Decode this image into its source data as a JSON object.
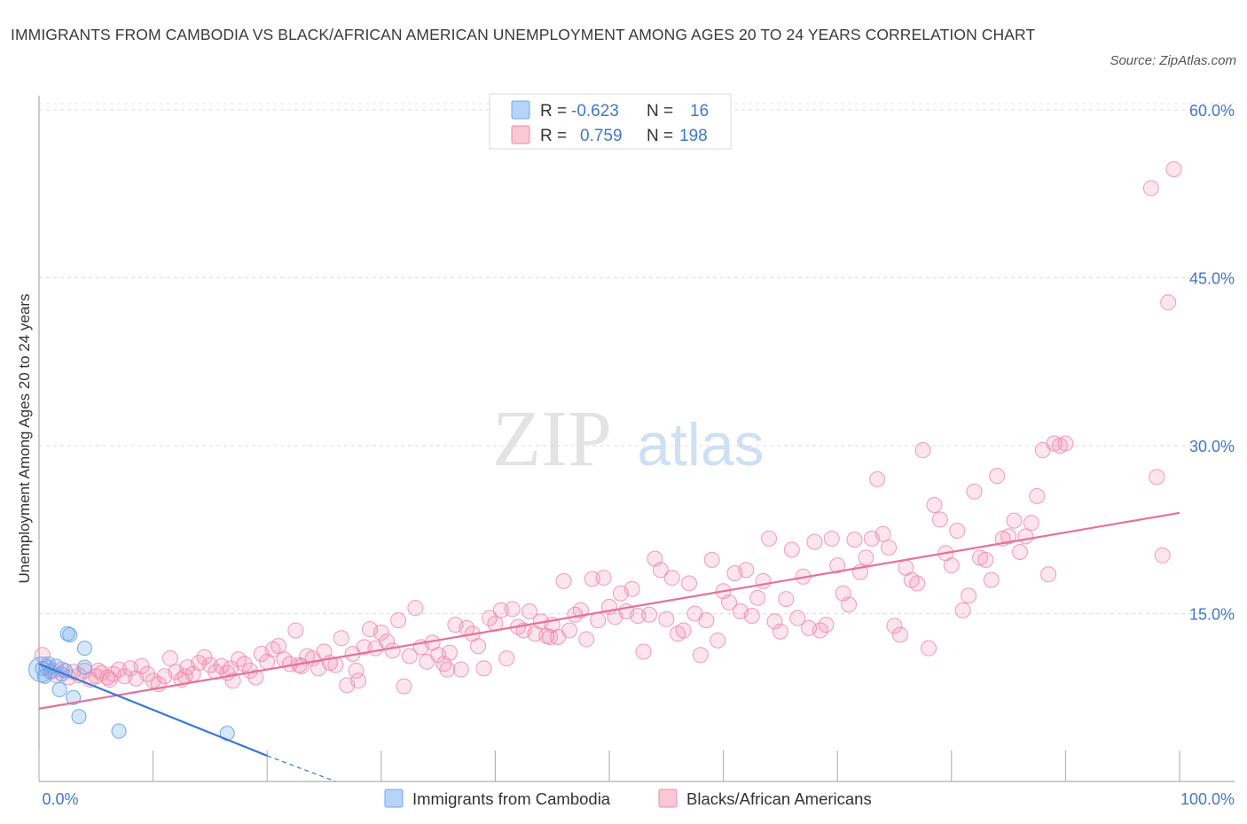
{
  "title": "IMMIGRANTS FROM CAMBODIA VS BLACK/AFRICAN AMERICAN UNEMPLOYMENT AMONG AGES 20 TO 24 YEARS CORRELATION CHART",
  "source": "Source: ZipAtlas.com",
  "watermark": {
    "zip": "ZIP",
    "atlas": "atlas"
  },
  "legend_top": {
    "row1": {
      "r_label": "R =",
      "r_value": "-0.623",
      "n_label": "N =",
      "n_value": "16"
    },
    "row2": {
      "r_label": "R =",
      "r_value": "0.759",
      "n_label": "N =",
      "n_value": "198"
    }
  },
  "chart_data": {
    "type": "scatter",
    "title": "IMMIGRANTS FROM CAMBODIA VS BLACK/AFRICAN AMERICAN UNEMPLOYMENT AMONG AGES 20 TO 24 YEARS CORRELATION CHART",
    "xlabel": "",
    "ylabel": "Unemployment Among Ages 20 to 24 years",
    "xlim": [
      0,
      100
    ],
    "ylim": [
      0,
      60
    ],
    "x_tick_labels": [
      "0.0%",
      "100.0%"
    ],
    "y_ticks": [
      15,
      30,
      45,
      60
    ],
    "y_tick_labels": [
      "15.0%",
      "30.0%",
      "45.0%",
      "60.0%"
    ],
    "colors": {
      "cambodia": "#6fa8ef",
      "black": "#f08aaa",
      "cambodia_line": "#3a78d4",
      "black_line": "#e5719a",
      "axis_label": "#3f78c9"
    },
    "series": [
      {
        "name": "Immigrants from Cambodia",
        "r": -0.623,
        "n": 16,
        "trend": {
          "x": [
            0,
            20
          ],
          "y": [
            10.5,
            2.3
          ],
          "dashed_extension_to": [
            26,
            0
          ]
        },
        "points": [
          [
            0.3,
            10.1
          ],
          [
            0.8,
            10.5
          ],
          [
            1.0,
            9.8
          ],
          [
            1.5,
            10.3
          ],
          [
            2.0,
            9.6
          ],
          [
            1.8,
            8.2
          ],
          [
            2.3,
            9.9
          ],
          [
            2.5,
            13.2
          ],
          [
            2.7,
            13.1
          ],
          [
            3.0,
            7.5
          ],
          [
            3.5,
            5.8
          ],
          [
            4.0,
            11.9
          ],
          [
            4.0,
            10.2
          ],
          [
            7.0,
            4.5
          ],
          [
            16.5,
            4.3
          ],
          [
            0.5,
            9.4
          ]
        ]
      },
      {
        "name": "Blacks/African Americans",
        "r": 0.759,
        "n": 198,
        "trend": {
          "x": [
            0,
            100
          ],
          "y": [
            6.5,
            24.0
          ]
        },
        "points": [
          [
            0.3,
            11.3
          ],
          [
            0.7,
            10.2
          ],
          [
            1.2,
            9.9
          ],
          [
            1.5,
            9.5
          ],
          [
            2.0,
            10.0
          ],
          [
            2.6,
            9.3
          ],
          [
            3.0,
            9.8
          ],
          [
            3.5,
            9.5
          ],
          [
            4.0,
            9.9
          ],
          [
            4.5,
            9.1
          ],
          [
            5.0,
            9.4
          ],
          [
            5.5,
            9.7
          ],
          [
            6.0,
            9.3
          ],
          [
            6.5,
            9.6
          ],
          [
            7.0,
            10.0
          ],
          [
            7.5,
            9.4
          ],
          [
            8.0,
            10.1
          ],
          [
            8.5,
            9.2
          ],
          [
            9.0,
            10.3
          ],
          [
            9.5,
            9.6
          ],
          [
            10.0,
            9.0
          ],
          [
            10.5,
            8.7
          ],
          [
            11.0,
            9.4
          ],
          [
            11.5,
            11.0
          ],
          [
            12.0,
            9.8
          ],
          [
            12.5,
            9.1
          ],
          [
            13.0,
            10.2
          ],
          [
            13.5,
            9.6
          ],
          [
            14.0,
            10.6
          ],
          [
            14.5,
            11.1
          ],
          [
            15.0,
            10.4
          ],
          [
            15.5,
            9.8
          ],
          [
            16.0,
            10.3
          ],
          [
            16.5,
            9.7
          ],
          [
            17.0,
            9.0
          ],
          [
            17.5,
            10.9
          ],
          [
            18.0,
            10.5
          ],
          [
            18.5,
            9.9
          ],
          [
            19.0,
            9.3
          ],
          [
            19.5,
            11.4
          ],
          [
            20.0,
            10.7
          ],
          [
            20.5,
            11.8
          ],
          [
            21.0,
            12.1
          ],
          [
            21.5,
            10.9
          ],
          [
            22.0,
            10.5
          ],
          [
            22.5,
            13.5
          ],
          [
            23.0,
            10.3
          ],
          [
            23.5,
            11.2
          ],
          [
            24.0,
            11.0
          ],
          [
            24.5,
            10.1
          ],
          [
            25.0,
            11.6
          ],
          [
            25.5,
            10.6
          ],
          [
            26.0,
            10.4
          ],
          [
            26.5,
            12.8
          ],
          [
            27.0,
            8.6
          ],
          [
            27.5,
            11.4
          ],
          [
            28.0,
            9.0
          ],
          [
            28.5,
            12.0
          ],
          [
            29.0,
            13.6
          ],
          [
            29.5,
            11.9
          ],
          [
            30.0,
            13.3
          ],
          [
            30.5,
            12.5
          ],
          [
            31.0,
            11.7
          ],
          [
            31.5,
            14.4
          ],
          [
            32.0,
            8.5
          ],
          [
            32.5,
            11.2
          ],
          [
            33.0,
            15.5
          ],
          [
            33.5,
            12.0
          ],
          [
            34.0,
            10.7
          ],
          [
            34.5,
            12.4
          ],
          [
            35.0,
            11.3
          ],
          [
            35.5,
            10.5
          ],
          [
            36.0,
            11.5
          ],
          [
            36.5,
            14.0
          ],
          [
            37.0,
            10.0
          ],
          [
            37.5,
            13.7
          ],
          [
            38.0,
            13.2
          ],
          [
            38.5,
            12.1
          ],
          [
            39.0,
            10.1
          ],
          [
            39.5,
            14.6
          ],
          [
            40.0,
            14.1
          ],
          [
            40.5,
            15.3
          ],
          [
            41.0,
            11.0
          ],
          [
            41.5,
            15.4
          ],
          [
            42.0,
            13.8
          ],
          [
            42.5,
            13.5
          ],
          [
            43.0,
            15.2
          ],
          [
            43.5,
            13.2
          ],
          [
            44.0,
            14.3
          ],
          [
            44.5,
            13.0
          ],
          [
            45.0,
            14.0
          ],
          [
            45.5,
            12.9
          ],
          [
            46.0,
            17.9
          ],
          [
            46.5,
            13.5
          ],
          [
            47.0,
            14.9
          ],
          [
            47.5,
            15.3
          ],
          [
            48.0,
            12.7
          ],
          [
            48.5,
            18.1
          ],
          [
            49.0,
            14.4
          ],
          [
            49.5,
            18.2
          ],
          [
            50.0,
            15.6
          ],
          [
            50.5,
            14.7
          ],
          [
            51.0,
            16.8
          ],
          [
            51.5,
            15.2
          ],
          [
            52.0,
            17.2
          ],
          [
            52.5,
            14.8
          ],
          [
            53.0,
            11.6
          ],
          [
            53.5,
            14.9
          ],
          [
            54.0,
            19.9
          ],
          [
            54.5,
            18.9
          ],
          [
            55.0,
            14.5
          ],
          [
            55.5,
            18.2
          ],
          [
            56.0,
            13.2
          ],
          [
            56.5,
            13.5
          ],
          [
            57.0,
            17.7
          ],
          [
            57.5,
            15.0
          ],
          [
            58.0,
            11.3
          ],
          [
            58.5,
            14.4
          ],
          [
            59.0,
            19.8
          ],
          [
            59.5,
            12.6
          ],
          [
            60.0,
            17.0
          ],
          [
            60.5,
            16.0
          ],
          [
            61.0,
            18.6
          ],
          [
            61.5,
            15.2
          ],
          [
            62.0,
            18.9
          ],
          [
            62.5,
            14.8
          ],
          [
            63.0,
            16.4
          ],
          [
            63.5,
            17.9
          ],
          [
            64.0,
            21.7
          ],
          [
            64.5,
            14.3
          ],
          [
            65.0,
            13.4
          ],
          [
            65.5,
            16.3
          ],
          [
            66.0,
            20.7
          ],
          [
            66.5,
            14.6
          ],
          [
            67.0,
            18.3
          ],
          [
            67.5,
            13.7
          ],
          [
            68.0,
            21.4
          ],
          [
            68.5,
            13.5
          ],
          [
            69.0,
            14.0
          ],
          [
            69.5,
            21.7
          ],
          [
            70.0,
            19.3
          ],
          [
            70.5,
            16.8
          ],
          [
            71.0,
            15.8
          ],
          [
            71.5,
            21.6
          ],
          [
            72.0,
            18.7
          ],
          [
            72.5,
            20.0
          ],
          [
            73.0,
            21.7
          ],
          [
            73.5,
            27.0
          ],
          [
            74.0,
            22.1
          ],
          [
            74.5,
            20.9
          ],
          [
            75.0,
            13.9
          ],
          [
            75.5,
            13.1
          ],
          [
            76.0,
            19.1
          ],
          [
            76.5,
            18.0
          ],
          [
            77.0,
            17.7
          ],
          [
            77.5,
            29.6
          ],
          [
            78.0,
            11.9
          ],
          [
            78.5,
            24.7
          ],
          [
            79.0,
            23.4
          ],
          [
            79.5,
            20.4
          ],
          [
            80.0,
            19.3
          ],
          [
            80.5,
            22.4
          ],
          [
            81.0,
            15.3
          ],
          [
            81.5,
            16.6
          ],
          [
            82.0,
            25.9
          ],
          [
            82.5,
            20.0
          ],
          [
            83.0,
            19.8
          ],
          [
            83.5,
            18.0
          ],
          [
            84.0,
            27.3
          ],
          [
            84.5,
            21.7
          ],
          [
            85.0,
            21.9
          ],
          [
            85.5,
            23.3
          ],
          [
            86.0,
            20.5
          ],
          [
            86.5,
            21.9
          ],
          [
            87.0,
            23.1
          ],
          [
            87.5,
            25.5
          ],
          [
            88.0,
            29.6
          ],
          [
            88.5,
            18.5
          ],
          [
            89.0,
            30.2
          ],
          [
            89.5,
            30.0
          ],
          [
            90.0,
            30.2
          ],
          [
            97.5,
            53.0
          ],
          [
            98.0,
            27.2
          ],
          [
            98.5,
            20.2
          ],
          [
            99.0,
            42.8
          ],
          [
            99.5,
            54.7
          ],
          [
            5.2,
            9.9
          ],
          [
            6.2,
            9.1
          ],
          [
            12.8,
            9.4
          ],
          [
            16.8,
            10.1
          ],
          [
            22.8,
            10.4
          ],
          [
            27.8,
            9.9
          ],
          [
            35.8,
            10.0
          ],
          [
            44.8,
            12.9
          ]
        ]
      }
    ],
    "legend_labels": [
      "Immigrants from Cambodia",
      "Blacks/African Americans"
    ]
  }
}
